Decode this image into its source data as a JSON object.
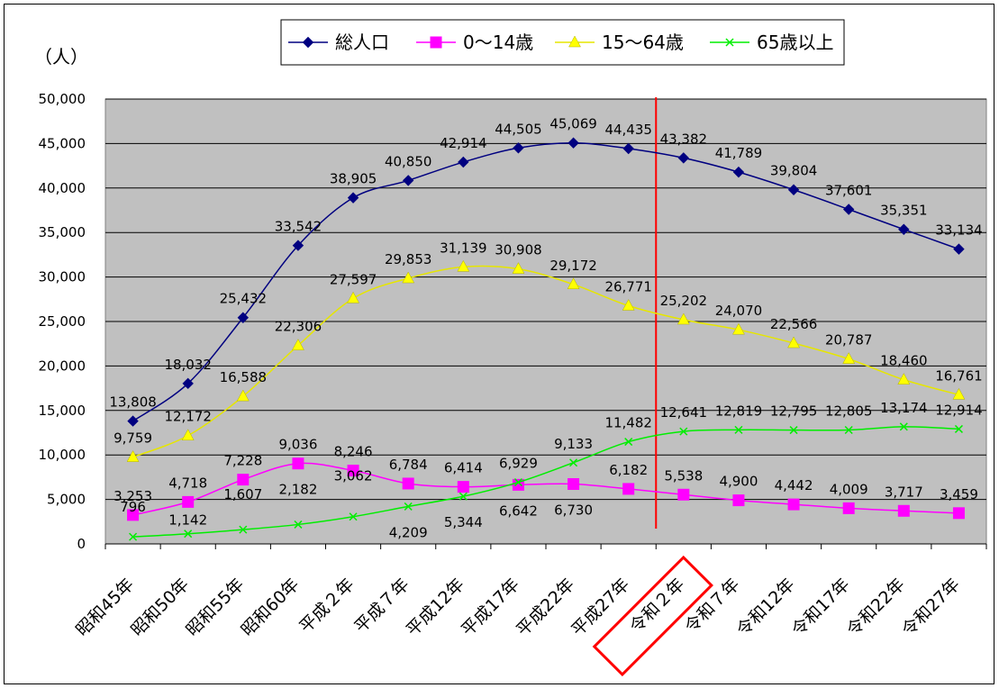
{
  "chart_data": {
    "type": "line",
    "ylabel": "（人）",
    "ylim": [
      0,
      50000
    ],
    "yticks": [
      0,
      5000,
      10000,
      15000,
      20000,
      25000,
      30000,
      35000,
      40000,
      45000,
      50000
    ],
    "ytick_labels": [
      "0",
      "5,000",
      "10,000",
      "15,000",
      "20,000",
      "25,000",
      "30,000",
      "35,000",
      "40,000",
      "45,000",
      "50,000"
    ],
    "categories": [
      "昭和45年",
      "昭和50年",
      "昭和55年",
      "昭和60年",
      "平成２年",
      "平成７年",
      "平成12年",
      "平成17年",
      "平成22年",
      "平成27年",
      "令和２年",
      "令和７年",
      "令和12年",
      "令和17年",
      "令和22年",
      "令和27年"
    ],
    "highlight_category": "令和２年",
    "divider_after_index": 9,
    "legend_position": "top",
    "grid": true,
    "series": [
      {
        "name": "総人口",
        "color": "#000080",
        "marker": "diamond",
        "values": [
          13808,
          18032,
          25432,
          33542,
          38905,
          40850,
          42914,
          44505,
          45069,
          44435,
          43382,
          41789,
          39804,
          37601,
          35351,
          33134
        ],
        "labels": [
          "13,808",
          "18,032",
          "25,432",
          "33,542",
          "38,905",
          "40,850",
          "42,914",
          "44,505",
          "45,069",
          "44,435",
          "43,382",
          "41,789",
          "39,804",
          "37,601",
          "35,351",
          "33,134"
        ]
      },
      {
        "name": "0〜14歳",
        "color": "#ff00ff",
        "marker": "square",
        "values": [
          3253,
          4718,
          7228,
          9036,
          8246,
          6784,
          6414,
          6642,
          6730,
          6182,
          5538,
          4900,
          4442,
          4009,
          3717,
          3459
        ],
        "labels": [
          "3,253",
          "4,718",
          "7,228",
          "9,036",
          "8,246",
          "6,784",
          "6,414",
          "6,642",
          "6,730",
          "6,182",
          "5,538",
          "4,900",
          "4,442",
          "4,009",
          "3,717",
          "3,459"
        ]
      },
      {
        "name": "15〜64歳",
        "color": "#ffff00",
        "marker": "triangle",
        "values": [
          9759,
          12172,
          16588,
          22306,
          27597,
          29853,
          31139,
          30908,
          29172,
          26771,
          25202,
          24070,
          22566,
          20787,
          18460,
          16761
        ],
        "labels": [
          "9,759",
          "12,172",
          "16,588",
          "22,306",
          "27,597",
          "29,853",
          "31,139",
          "30,908",
          "29,172",
          "26,771",
          "25,202",
          "24,070",
          "22,566",
          "20,787",
          "18,460",
          "16,761"
        ]
      },
      {
        "name": "65歳以上",
        "color": "#00ee00",
        "marker": "x",
        "values": [
          796,
          1142,
          1607,
          2182,
          3062,
          4209,
          5344,
          6929,
          9133,
          11482,
          12641,
          12819,
          12795,
          12805,
          13174,
          12914
        ],
        "labels": [
          "796",
          "1,142",
          "1,607",
          "2,182",
          "3,062",
          "4,209",
          "5,344",
          "6,929",
          "9,133",
          "11,482",
          "12,641",
          "12,819",
          "12,795",
          "12,805",
          "13,174",
          "12,914"
        ]
      }
    ]
  }
}
